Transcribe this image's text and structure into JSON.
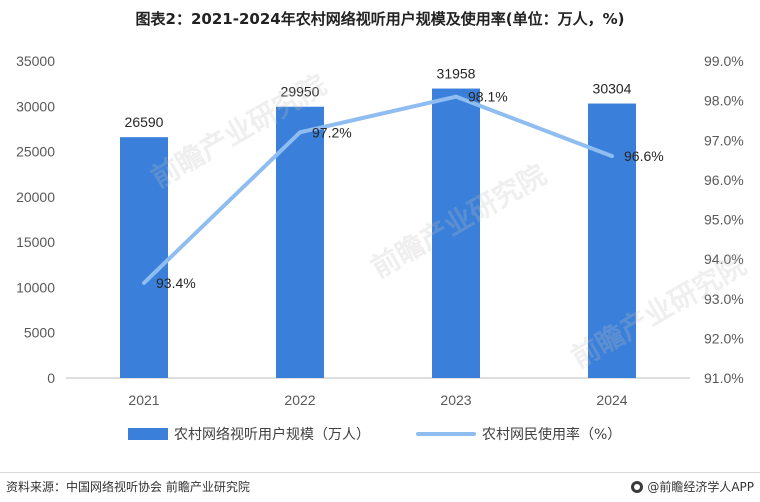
{
  "title": "图表2：2021-2024年农村网络视听用户规模及使用率(单位：万人，%)",
  "chart_data": {
    "type": "bar",
    "categories": [
      "2021",
      "2022",
      "2023",
      "2024"
    ],
    "series": [
      {
        "name": "农村网络视听用户规模（万人）",
        "type": "bar",
        "axis": "left",
        "values": [
          26590,
          29950,
          31958,
          30304
        ],
        "color": "#3a7fd9"
      },
      {
        "name": "农村网民使用率（%）",
        "type": "line",
        "axis": "right",
        "values": [
          93.4,
          97.2,
          98.1,
          96.6
        ],
        "color": "#8fbdf0"
      }
    ],
    "left_axis": {
      "ylim": [
        0,
        35000
      ],
      "ticks": [
        "0",
        "5000",
        "10000",
        "15000",
        "20000",
        "25000",
        "30000",
        "35000"
      ]
    },
    "right_axis": {
      "ylim": [
        91.0,
        99.0
      ],
      "ticks": [
        "91.0%",
        "92.0%",
        "93.0%",
        "94.0%",
        "95.0%",
        "96.0%",
        "97.0%",
        "98.0%",
        "99.0%"
      ]
    },
    "bar_labels": [
      "26590",
      "29950",
      "31958",
      "30304"
    ],
    "line_labels": [
      "93.4%",
      "97.2%",
      "98.1%",
      "96.6%"
    ],
    "grid": false,
    "legend_position": "bottom"
  },
  "legend": {
    "bar_label": "农村网络视听用户规模（万人）",
    "line_label": "农村网民使用率（%）"
  },
  "footer": {
    "source": "资料来源：中国网络视听协会 前瞻产业研究院",
    "brand": "@前瞻经济学人APP"
  },
  "watermark": "前瞻产业研究院"
}
